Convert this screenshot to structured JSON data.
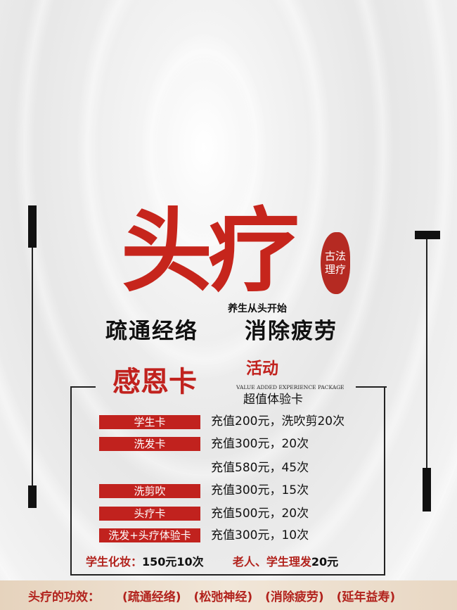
{
  "title": {
    "main": "头疗",
    "seal": "古法理疗",
    "slogan": "养生从头开始",
    "line1": "疏通经络",
    "line2": "消除疲劳"
  },
  "promo": {
    "card": "感恩卡",
    "activity": "活动",
    "english": "VALUE ADDED EXPERIENCE PACKAGE",
    "subtitle": "超值体验卡"
  },
  "items": [
    {
      "tag": "学生卡",
      "price": "充值200元，洗吹剪20次"
    },
    {
      "tag": "洗发卡",
      "price": "充值300元，20次"
    },
    {
      "tag": "",
      "price": "充值580元，45次"
    },
    {
      "tag": "洗剪吹",
      "price": "充值300元，15次"
    },
    {
      "tag": "头疗卡",
      "price": "充值500元，20次"
    },
    {
      "tag": "洗发+头疗体验卡",
      "price": "充值300元，10次"
    }
  ],
  "footer_offer": {
    "a_label": "学生化妆：",
    "a_value": "150元10次",
    "b_label": "老人、学生理发",
    "b_value": "20元"
  },
  "benefits": {
    "label": "头疗的功效：",
    "items": [
      "(疏通经络)",
      "(松弛神经)",
      "(消除疲劳)",
      "(延年益寿)"
    ]
  },
  "colors": {
    "red": "#c1221e",
    "band": "#e8d7c3"
  }
}
